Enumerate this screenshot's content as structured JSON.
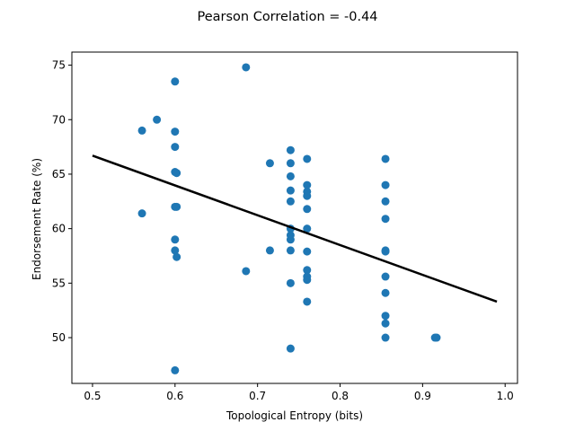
{
  "chart_data": {
    "type": "scatter",
    "title": "Pearson Correlation = -0.44",
    "xlabel": "Topological Entropy (bits)",
    "ylabel": "Endorsement Rate (%)",
    "xlim": [
      0.475,
      1.015
    ],
    "ylim": [
      45.8,
      76.2
    ],
    "xticks": [
      0.5,
      0.6,
      0.7,
      0.8,
      0.9,
      1.0
    ],
    "xtick_labels": [
      "0.5",
      "0.6",
      "0.7",
      "0.8",
      "0.9",
      "1.0"
    ],
    "yticks": [
      50,
      55,
      60,
      65,
      70,
      75
    ],
    "ytick_labels": [
      "50",
      "55",
      "60",
      "65",
      "70",
      "75"
    ],
    "grid": false,
    "point_color": "#1f77b4",
    "line_color": "#000000",
    "points": [
      {
        "x": 0.56,
        "y": 69.0
      },
      {
        "x": 0.56,
        "y": 61.4
      },
      {
        "x": 0.578,
        "y": 70.0
      },
      {
        "x": 0.6,
        "y": 73.5
      },
      {
        "x": 0.6,
        "y": 68.9
      },
      {
        "x": 0.6,
        "y": 67.5
      },
      {
        "x": 0.6,
        "y": 65.2
      },
      {
        "x": 0.602,
        "y": 65.1
      },
      {
        "x": 0.6,
        "y": 62.0
      },
      {
        "x": 0.602,
        "y": 62.0
      },
      {
        "x": 0.6,
        "y": 59.0
      },
      {
        "x": 0.6,
        "y": 58.0
      },
      {
        "x": 0.602,
        "y": 57.4
      },
      {
        "x": 0.6,
        "y": 47.0
      },
      {
        "x": 0.686,
        "y": 74.8
      },
      {
        "x": 0.686,
        "y": 56.1
      },
      {
        "x": 0.715,
        "y": 66.0
      },
      {
        "x": 0.715,
        "y": 58.0
      },
      {
        "x": 0.74,
        "y": 67.2
      },
      {
        "x": 0.74,
        "y": 66.0
      },
      {
        "x": 0.74,
        "y": 64.8
      },
      {
        "x": 0.74,
        "y": 63.5
      },
      {
        "x": 0.74,
        "y": 62.5
      },
      {
        "x": 0.74,
        "y": 60.0
      },
      {
        "x": 0.74,
        "y": 59.4
      },
      {
        "x": 0.74,
        "y": 59.0
      },
      {
        "x": 0.74,
        "y": 58.0
      },
      {
        "x": 0.74,
        "y": 55.0
      },
      {
        "x": 0.74,
        "y": 49.0
      },
      {
        "x": 0.76,
        "y": 66.4
      },
      {
        "x": 0.76,
        "y": 64.0
      },
      {
        "x": 0.76,
        "y": 63.4
      },
      {
        "x": 0.76,
        "y": 63.0
      },
      {
        "x": 0.76,
        "y": 61.8
      },
      {
        "x": 0.76,
        "y": 60.0
      },
      {
        "x": 0.76,
        "y": 57.9
      },
      {
        "x": 0.76,
        "y": 56.2
      },
      {
        "x": 0.76,
        "y": 55.6
      },
      {
        "x": 0.76,
        "y": 55.3
      },
      {
        "x": 0.76,
        "y": 53.3
      },
      {
        "x": 0.855,
        "y": 66.4
      },
      {
        "x": 0.855,
        "y": 64.0
      },
      {
        "x": 0.855,
        "y": 62.5
      },
      {
        "x": 0.855,
        "y": 60.9
      },
      {
        "x": 0.855,
        "y": 58.0
      },
      {
        "x": 0.855,
        "y": 57.9
      },
      {
        "x": 0.855,
        "y": 55.6
      },
      {
        "x": 0.855,
        "y": 54.1
      },
      {
        "x": 0.855,
        "y": 52.0
      },
      {
        "x": 0.855,
        "y": 51.3
      },
      {
        "x": 0.855,
        "y": 50.0
      },
      {
        "x": 0.915,
        "y": 50.0
      },
      {
        "x": 0.917,
        "y": 50.0
      }
    ],
    "fit_line": {
      "x": [
        0.5,
        0.99
      ],
      "y": [
        66.7,
        53.3
      ]
    }
  }
}
